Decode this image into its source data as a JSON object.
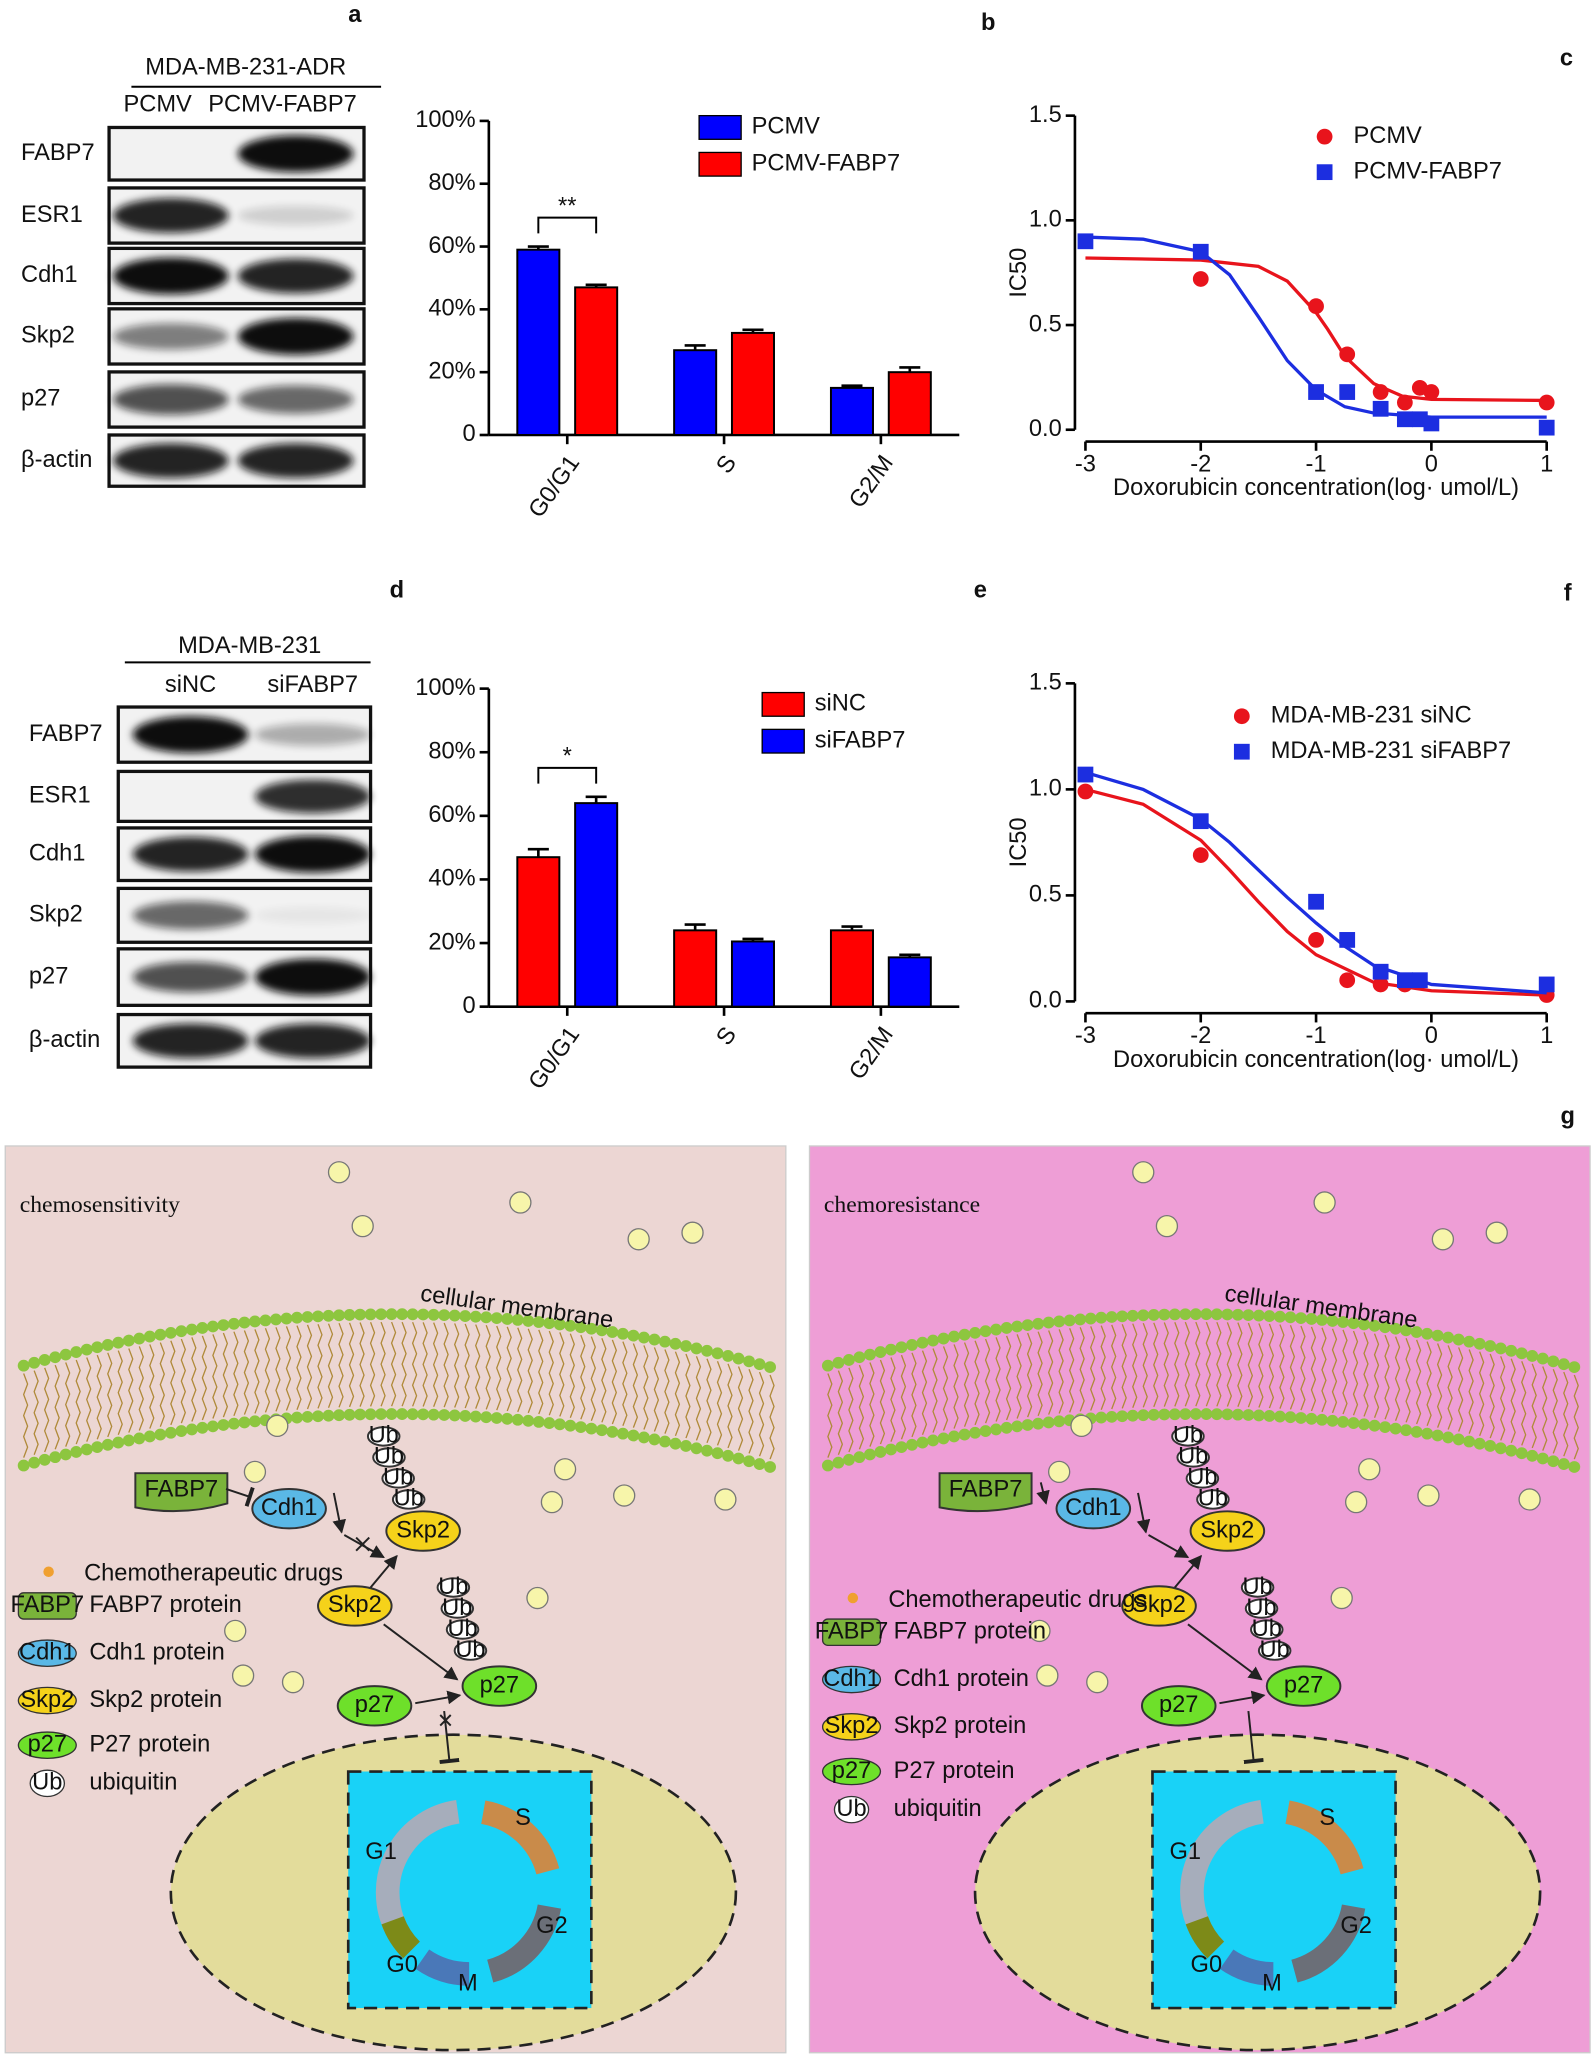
{
  "panel_labels": [
    "a",
    "b",
    "c",
    "d",
    "e",
    "f",
    "g"
  ],
  "blots": [
    {
      "cell_line": "MDA-MB-231-ADR",
      "lanes": [
        "PCMV",
        "PCMV-FABP7"
      ],
      "rows": [
        "FABP7",
        "ESR1",
        "Cdh1",
        "Skp2",
        "p27",
        "β-actin"
      ]
    },
    {
      "cell_line": "MDA-MB-231",
      "lanes": [
        "siNC",
        "siFABP7"
      ],
      "rows": [
        "FABP7",
        "ESR1",
        "Cdh1",
        "Skp2",
        "p27",
        "β-actin"
      ]
    }
  ],
  "chart_data": [
    {
      "type": "bar",
      "categories": [
        "G0/G1",
        "S",
        "G2/M"
      ],
      "series": [
        {
          "name": "PCMV",
          "color": "#0000ff",
          "values": [
            59,
            27,
            15
          ],
          "errors": [
            1,
            1.5,
            0.7
          ]
        },
        {
          "name": "PCMV-FABP7",
          "color": "#ff0000",
          "values": [
            47,
            32.5,
            20
          ],
          "errors": [
            0.8,
            1,
            1.5
          ]
        }
      ],
      "ylim": [
        0,
        100
      ],
      "yticks": [
        0,
        {
          "value": 20,
          "label": "20%"
        },
        {
          "value": 40,
          "label": "40%"
        },
        {
          "value": 60,
          "label": "60%"
        },
        {
          "value": 80,
          "label": "80%"
        },
        {
          "value": 100,
          "label": "100%"
        }
      ],
      "annotation": "**",
      "legend": "upper right"
    },
    {
      "type": "scatter",
      "y_label": "IC50",
      "x_label": "Doxorubicin concentration(log·  umol/L)",
      "series": [
        {
          "name": "PCMV",
          "color": "#e8141c",
          "marker": "circle",
          "x": [
            -2,
            -1,
            -0.73,
            -0.44,
            -0.23,
            -0.1,
            0,
            1
          ],
          "values": [
            0.72,
            0.59,
            0.36,
            0.18,
            0.13,
            0.2,
            0.18,
            0.13
          ],
          "curve": {
            "x": [
              -3,
              -2,
              -1.5,
              -1.25,
              -1,
              -0.9,
              -0.75,
              -0.5,
              -0.25,
              0,
              1
            ],
            "y": [
              0.82,
              0.81,
              0.78,
              0.71,
              0.56,
              0.48,
              0.35,
              0.22,
              0.16,
              0.145,
              0.14
            ]
          }
        },
        {
          "name": "PCMV-FABP7",
          "color": "#1c2ee0",
          "marker": "square",
          "x": [
            -3,
            -2,
            -1,
            -0.73,
            -0.44,
            -0.23,
            -0.1,
            0,
            1
          ],
          "values": [
            0.9,
            0.85,
            0.18,
            0.18,
            0.1,
            0.05,
            0.05,
            0.03,
            0.01
          ],
          "curve": {
            "x": [
              -3,
              -2.5,
              -2,
              -1.75,
              -1.5,
              -1.25,
              -1,
              -0.75,
              -0.5,
              0,
              1
            ],
            "y": [
              0.92,
              0.91,
              0.85,
              0.74,
              0.54,
              0.33,
              0.19,
              0.11,
              0.08,
              0.06,
              0.06
            ]
          }
        }
      ],
      "xlim": [
        -3,
        1
      ],
      "xticks": [
        -3,
        -2,
        -1,
        0,
        1
      ],
      "ylim": [
        0,
        1.5
      ],
      "yticks": [
        {
          "value": 0,
          "label": "0.0"
        },
        0.5,
        {
          "value": 1,
          "label": "1.0"
        },
        1.5
      ],
      "legend": "upper right"
    },
    {
      "type": "bar",
      "categories": [
        "G0/G1",
        "S",
        "G2/M"
      ],
      "series": [
        {
          "name": "siNC",
          "color": "#ff0000",
          "values": [
            47,
            24,
            24
          ],
          "errors": [
            2.5,
            1.8,
            1.2
          ]
        },
        {
          "name": "siFABP7",
          "color": "#0000ff",
          "values": [
            64,
            20.5,
            15.5
          ],
          "errors": [
            2,
            0.8,
            0.8
          ]
        }
      ],
      "ylim": [
        0,
        100
      ],
      "yticks": [
        0,
        {
          "value": 20,
          "label": "20%"
        },
        {
          "value": 40,
          "label": "40%"
        },
        {
          "value": 60,
          "label": "60%"
        },
        {
          "value": 80,
          "label": "80%"
        },
        {
          "value": 100,
          "label": "100%"
        }
      ],
      "annotation": "*",
      "legend": "upper right"
    },
    {
      "type": "scatter",
      "y_label": "IC50",
      "x_label": "Doxorubicin concentration(log·  umol/L)",
      "series": [
        {
          "name": "MDA-MB-231 siNC",
          "color": "#e8141c",
          "marker": "circle",
          "x": [
            -3,
            -2,
            -1,
            -0.73,
            -0.44,
            -0.23,
            1
          ],
          "values": [
            0.99,
            0.69,
            0.29,
            0.1,
            0.08,
            0.08,
            0.03
          ],
          "curve": {
            "x": [
              -3,
              -2.5,
              -2,
              -1.75,
              -1.5,
              -1.25,
              -1,
              -0.5,
              0,
              1
            ],
            "y": [
              1,
              0.93,
              0.76,
              0.62,
              0.47,
              0.33,
              0.22,
              0.09,
              0.05,
              0.03
            ]
          }
        },
        {
          "name": "MDA-MB-231 siFABP7",
          "color": "#1c2ee0",
          "marker": "square",
          "x": [
            -3,
            -2,
            -1,
            -0.73,
            -0.44,
            -0.23,
            -0.1,
            1
          ],
          "values": [
            1.07,
            0.85,
            0.47,
            0.29,
            0.14,
            0.1,
            0.1,
            0.08
          ],
          "curve": {
            "x": [
              -3,
              -2.5,
              -2,
              -1.75,
              -1.5,
              -1.25,
              -1,
              -0.75,
              -0.5,
              0,
              1
            ],
            "y": [
              1.08,
              1,
              0.86,
              0.75,
              0.62,
              0.49,
              0.37,
              0.26,
              0.17,
              0.08,
              0.04
            ]
          }
        }
      ],
      "xlim": [
        -3,
        1
      ],
      "xticks": [
        -3,
        -2,
        -1,
        0,
        1
      ],
      "ylim": [
        0,
        1.5
      ],
      "yticks": [
        {
          "value": 0,
          "label": "0.0"
        },
        0.5,
        {
          "value": 1,
          "label": "1.0"
        },
        1.5
      ],
      "legend": "upper right"
    }
  ],
  "diagram": {
    "panels": [
      {
        "title": "chemosensitivity",
        "membrane": "cellular membrane",
        "fabp7": "FABP7",
        "cdh1": "Cdh1",
        "skp2": "Skp2",
        "p27": "p27",
        "ub": "Ub",
        "legend": [
          {
            "label": "Chemotherapeutic drugs"
          },
          {
            "icon": "FABP7",
            "label": "FABP7 protein"
          },
          {
            "icon": "Cdh1",
            "label": "Cdh1 protein"
          },
          {
            "icon": "Skp2",
            "label": "Skp2 protein"
          },
          {
            "icon": "p27",
            "label": "P27 protein"
          },
          {
            "icon": "Ub",
            "label": "ubiquitin"
          }
        ],
        "cycle": [
          "G1",
          "S",
          "G2",
          "M",
          "G0"
        ]
      },
      {
        "title": "chemoresistance",
        "membrane": "cellular membrane",
        "fabp7": "FABP7",
        "cdh1": "Cdh1",
        "skp2": "Skp2",
        "p27": "p27",
        "ub": "Ub",
        "legend": [
          {
            "label": "Chemotherapeutic drugs"
          },
          {
            "icon": "FABP7",
            "label": "FABP7 protein"
          },
          {
            "icon": "Cdh1",
            "label": "Cdh1 protein"
          },
          {
            "icon": "Skp2",
            "label": "Skp2 protein"
          },
          {
            "icon": "p27",
            "label": "P27 protein"
          },
          {
            "icon": "Ub",
            "label": "ubiquitin"
          }
        ],
        "cycle": [
          "G1",
          "S",
          "G2",
          "M",
          "G0"
        ]
      }
    ]
  }
}
